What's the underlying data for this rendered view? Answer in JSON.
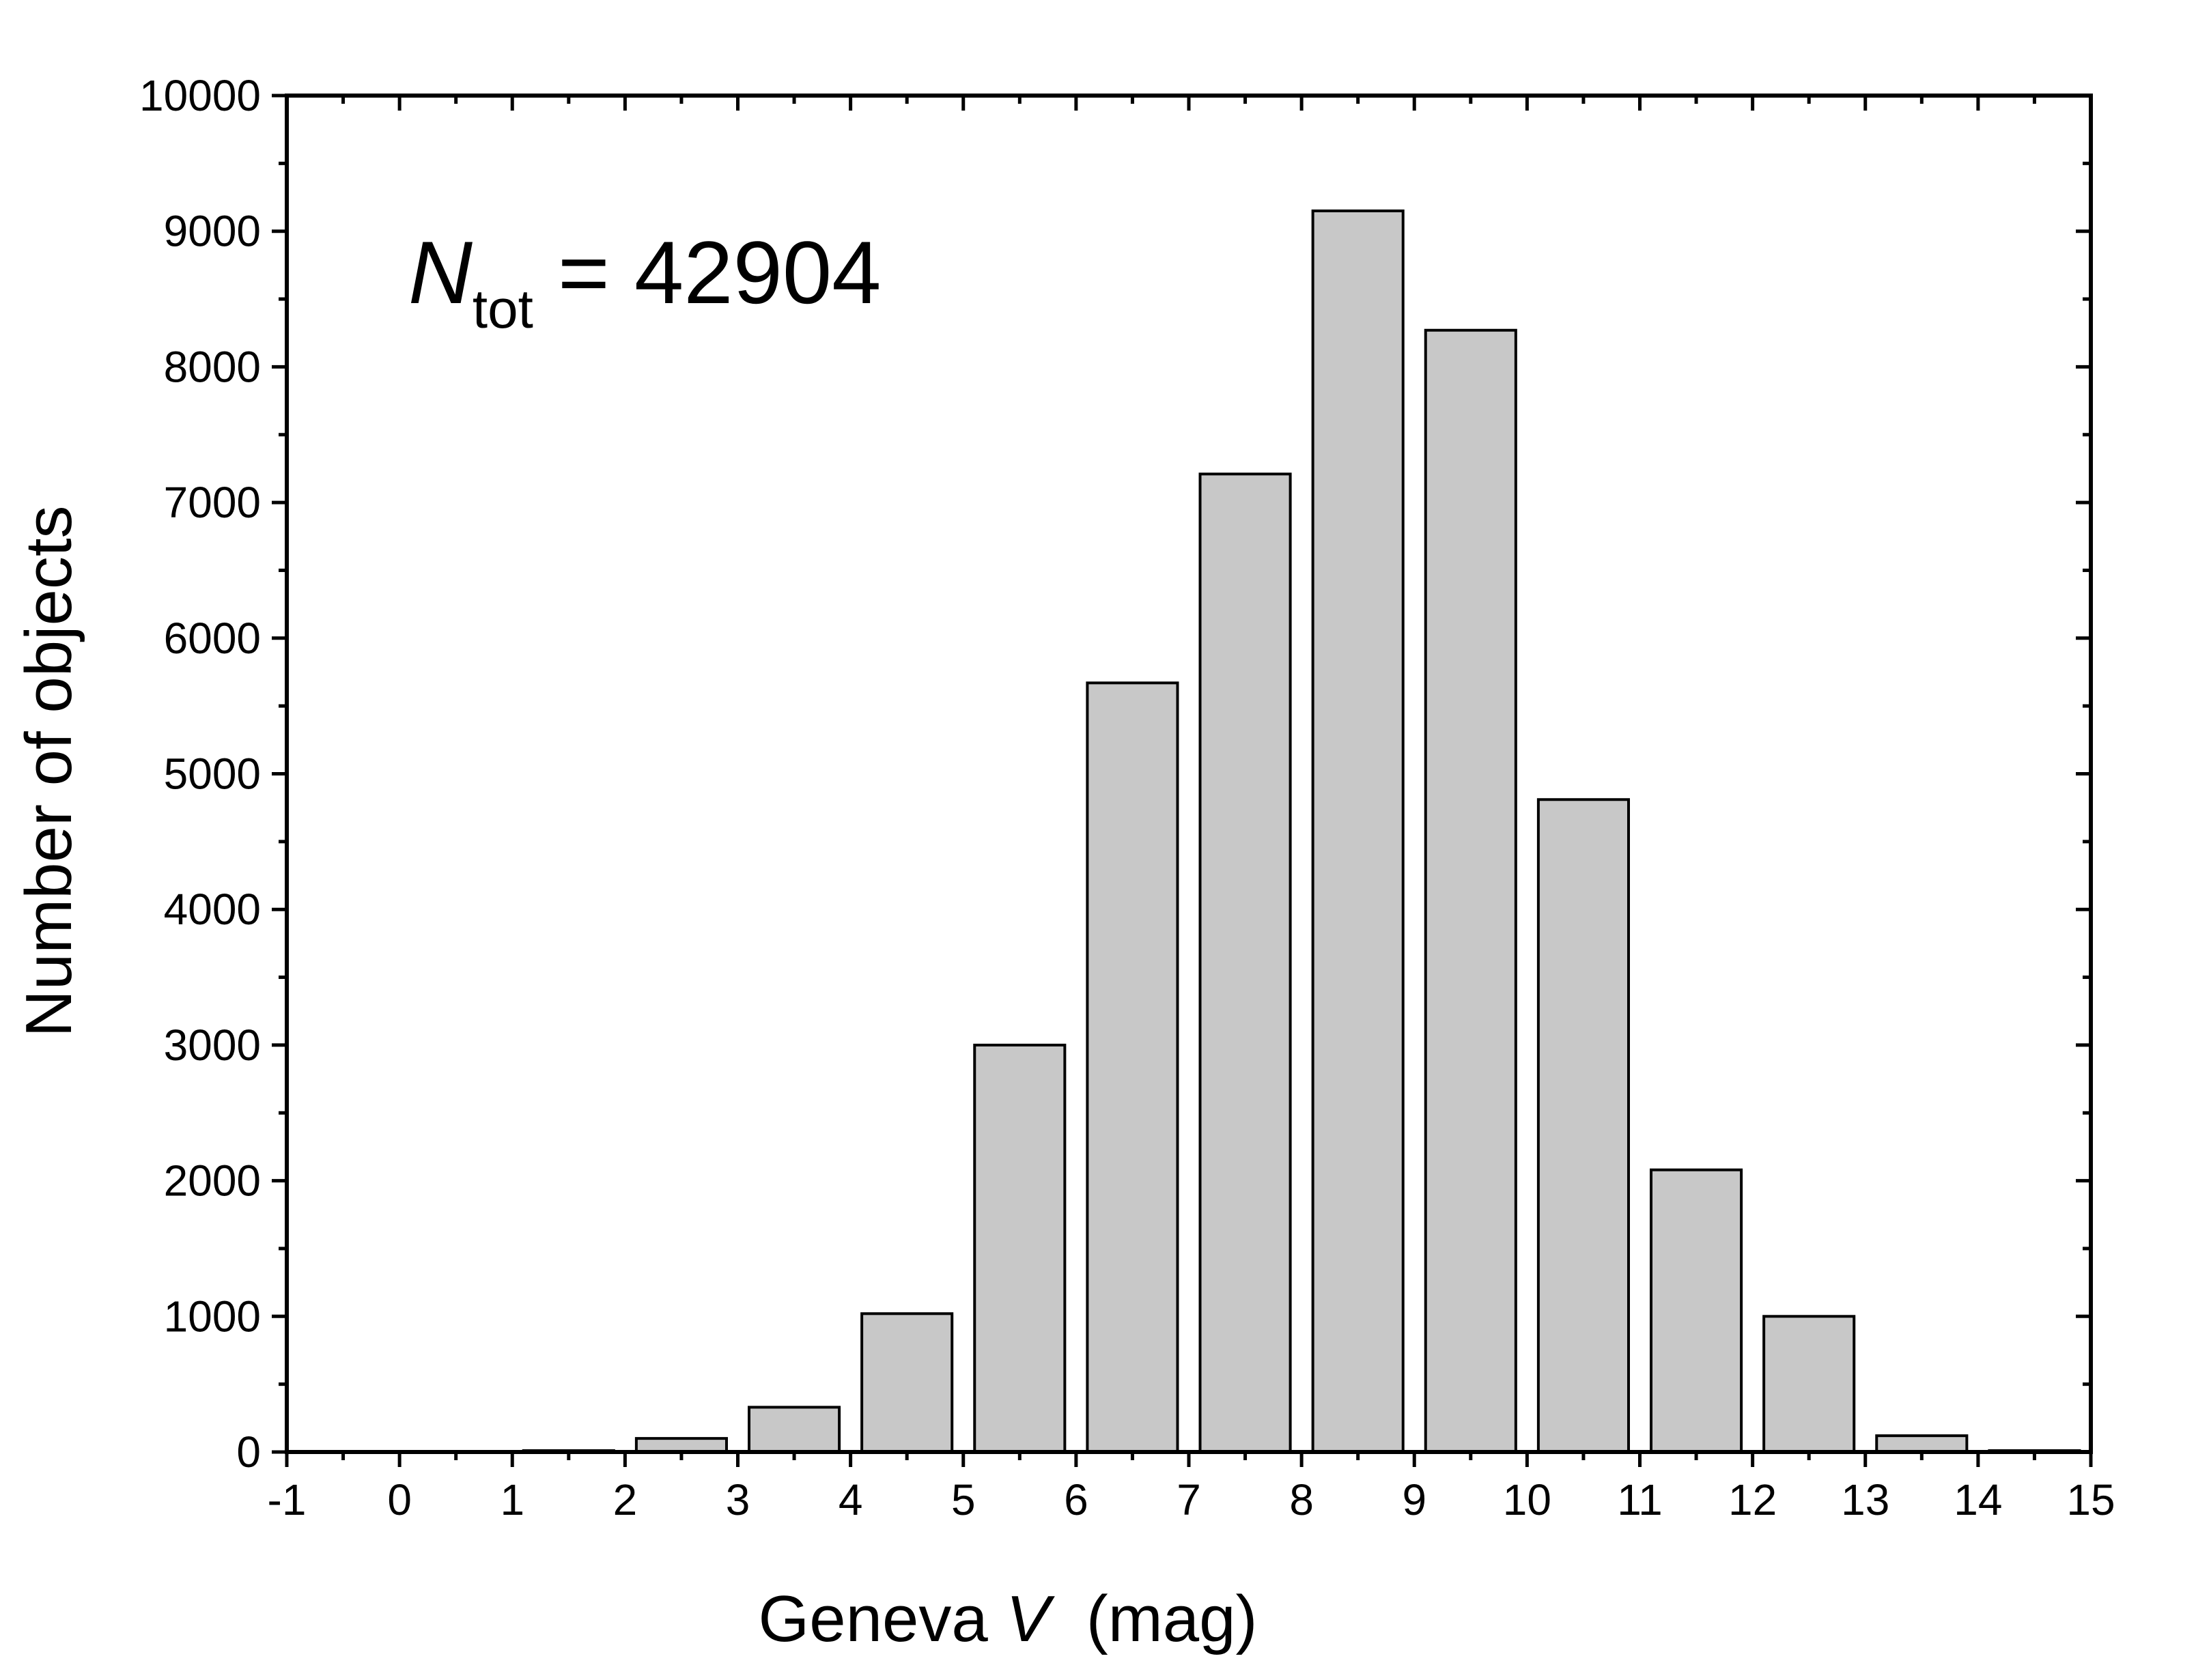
{
  "chart_data": {
    "type": "bar",
    "annotation": {
      "symbol": "N",
      "subscript": "tot",
      "text": " = 42904"
    },
    "xlabel": {
      "prefix": "Geneva ",
      "italic": "V",
      "suffix": "  (mag)"
    },
    "ylabel": "Number of objects",
    "xlim": [
      -1,
      15
    ],
    "ylim": [
      0,
      10000
    ],
    "x_ticks": [
      -1,
      0,
      1,
      2,
      3,
      4,
      5,
      6,
      7,
      8,
      9,
      10,
      11,
      12,
      13,
      14,
      15
    ],
    "x_tick_labels": [
      "-1",
      "0",
      "1",
      "2",
      "3",
      "4",
      "5",
      "6",
      "7",
      "8",
      "9",
      "10",
      "11",
      "12",
      "13",
      "14",
      "15"
    ],
    "y_ticks": [
      0,
      1000,
      2000,
      3000,
      4000,
      5000,
      6000,
      7000,
      8000,
      9000,
      10000
    ],
    "y_tick_labels": [
      "0",
      "1000",
      "2000",
      "3000",
      "4000",
      "5000",
      "6000",
      "7000",
      "8000",
      "9000",
      "10000"
    ],
    "bins": [
      {
        "from": -1,
        "to": 0,
        "value": 0
      },
      {
        "from": 0,
        "to": 1,
        "value": 0
      },
      {
        "from": 1,
        "to": 2,
        "value": 10
      },
      {
        "from": 2,
        "to": 3,
        "value": 100
      },
      {
        "from": 3,
        "to": 4,
        "value": 330
      },
      {
        "from": 4,
        "to": 5,
        "value": 1020
      },
      {
        "from": 5,
        "to": 6,
        "value": 3000
      },
      {
        "from": 6,
        "to": 7,
        "value": 5670
      },
      {
        "from": 7,
        "to": 8,
        "value": 7210
      },
      {
        "from": 8,
        "to": 9,
        "value": 9150
      },
      {
        "from": 9,
        "to": 10,
        "value": 8270
      },
      {
        "from": 10,
        "to": 11,
        "value": 4810
      },
      {
        "from": 11,
        "to": 12,
        "value": 2080
      },
      {
        "from": 12,
        "to": 13,
        "value": 1000
      },
      {
        "from": 13,
        "to": 14,
        "value": 120
      },
      {
        "from": 14,
        "to": 15,
        "value": 10
      }
    ],
    "bar_fill": "#c8c8c8",
    "bar_edge": "#000000",
    "grid": false,
    "legend": "none"
  }
}
